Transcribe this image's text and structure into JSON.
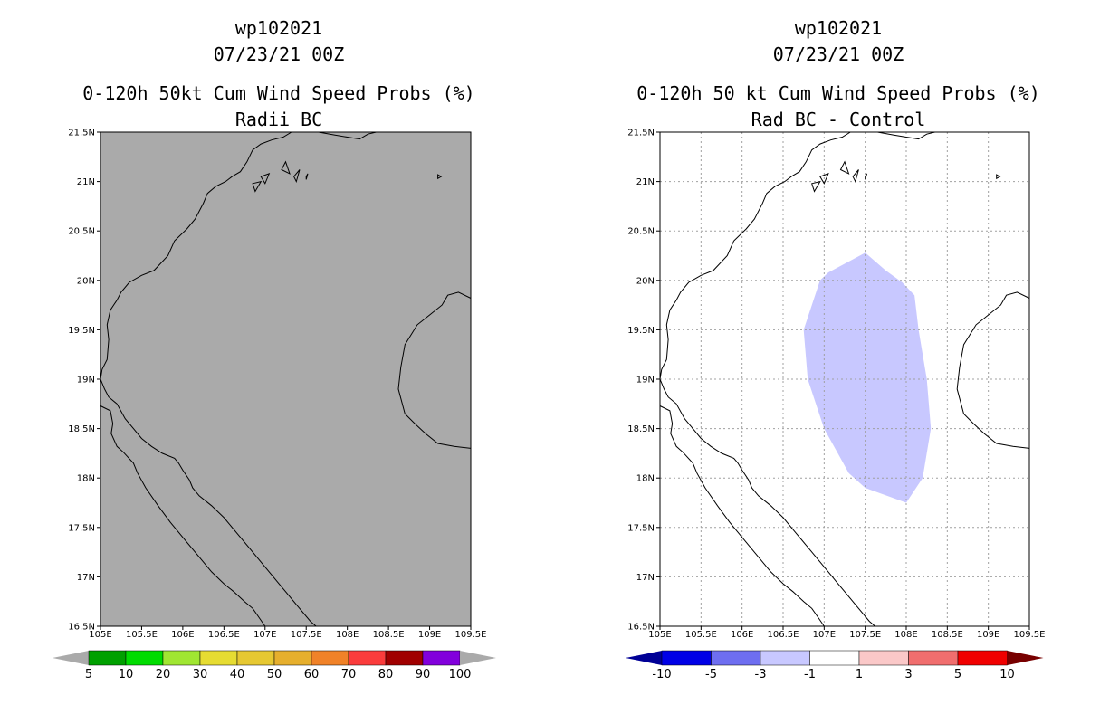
{
  "panels": [
    {
      "id": "left",
      "title_line1": "wp102021",
      "title_line2": "07/23/21 00Z",
      "title_line3": "0-120h 50kt Cum Wind Speed Probs (%)",
      "title_line4": "Radii BC",
      "background_color": "#aaaaaa",
      "grid": false,
      "colorbar": {
        "colors": [
          "#00a000",
          "#00dc00",
          "#a0e632",
          "#e6dc32",
          "#e6c832",
          "#e6af2d",
          "#f08228",
          "#fa3c3c",
          "#a00000",
          "#8200dc"
        ],
        "end_color": "#aaaaaa",
        "labels": [
          "5",
          "10",
          "20",
          "30",
          "40",
          "50",
          "60",
          "70",
          "80",
          "90",
          "100"
        ]
      }
    },
    {
      "id": "right",
      "title_line1": "wp102021",
      "title_line2": "07/23/21 00Z",
      "title_line3": "0-120h 50 kt Cum Wind Speed Probs (%)",
      "title_line4": "Rad BC - Control",
      "background_color": "#ffffff",
      "grid": true,
      "shaded_region": {
        "color": "#c8c8ff",
        "points_lonlat": [
          [
            106.75,
            19.5
          ],
          [
            106.95,
            20.0
          ],
          [
            107.05,
            20.08
          ],
          [
            107.5,
            20.28
          ],
          [
            107.75,
            20.1
          ],
          [
            107.95,
            19.98
          ],
          [
            108.1,
            19.85
          ],
          [
            108.15,
            19.5
          ],
          [
            108.25,
            19.0
          ],
          [
            108.3,
            18.5
          ],
          [
            108.2,
            18.0
          ],
          [
            108.0,
            17.75
          ],
          [
            107.5,
            17.9
          ],
          [
            107.3,
            18.05
          ],
          [
            107.0,
            18.5
          ],
          [
            106.8,
            19.0
          ]
        ]
      },
      "colorbar": {
        "colors": [
          "#0000e6",
          "#6e6ef0",
          "#c8c8ff",
          "#ffffff",
          "#fac8c8",
          "#f06e6e",
          "#f00000"
        ],
        "left_end_color": "#000096",
        "right_end_color": "#780000",
        "labels": [
          "-10",
          "-5",
          "-3",
          "-1",
          "1",
          "3",
          "5",
          "10"
        ]
      }
    }
  ],
  "map": {
    "lon_min": 105,
    "lon_max": 109.5,
    "lat_min": 16.5,
    "lat_max": 21.5,
    "lon_ticks": [
      "105E",
      "105.5E",
      "106E",
      "106.5E",
      "107E",
      "107.5E",
      "108E",
      "108.5E",
      "109E",
      "109.5E"
    ],
    "lat_ticks": [
      "16.5N",
      "17N",
      "17.5N",
      "18N",
      "18.5N",
      "19N",
      "19.5N",
      "20N",
      "20.5N",
      "21N",
      "21.5N"
    ]
  }
}
